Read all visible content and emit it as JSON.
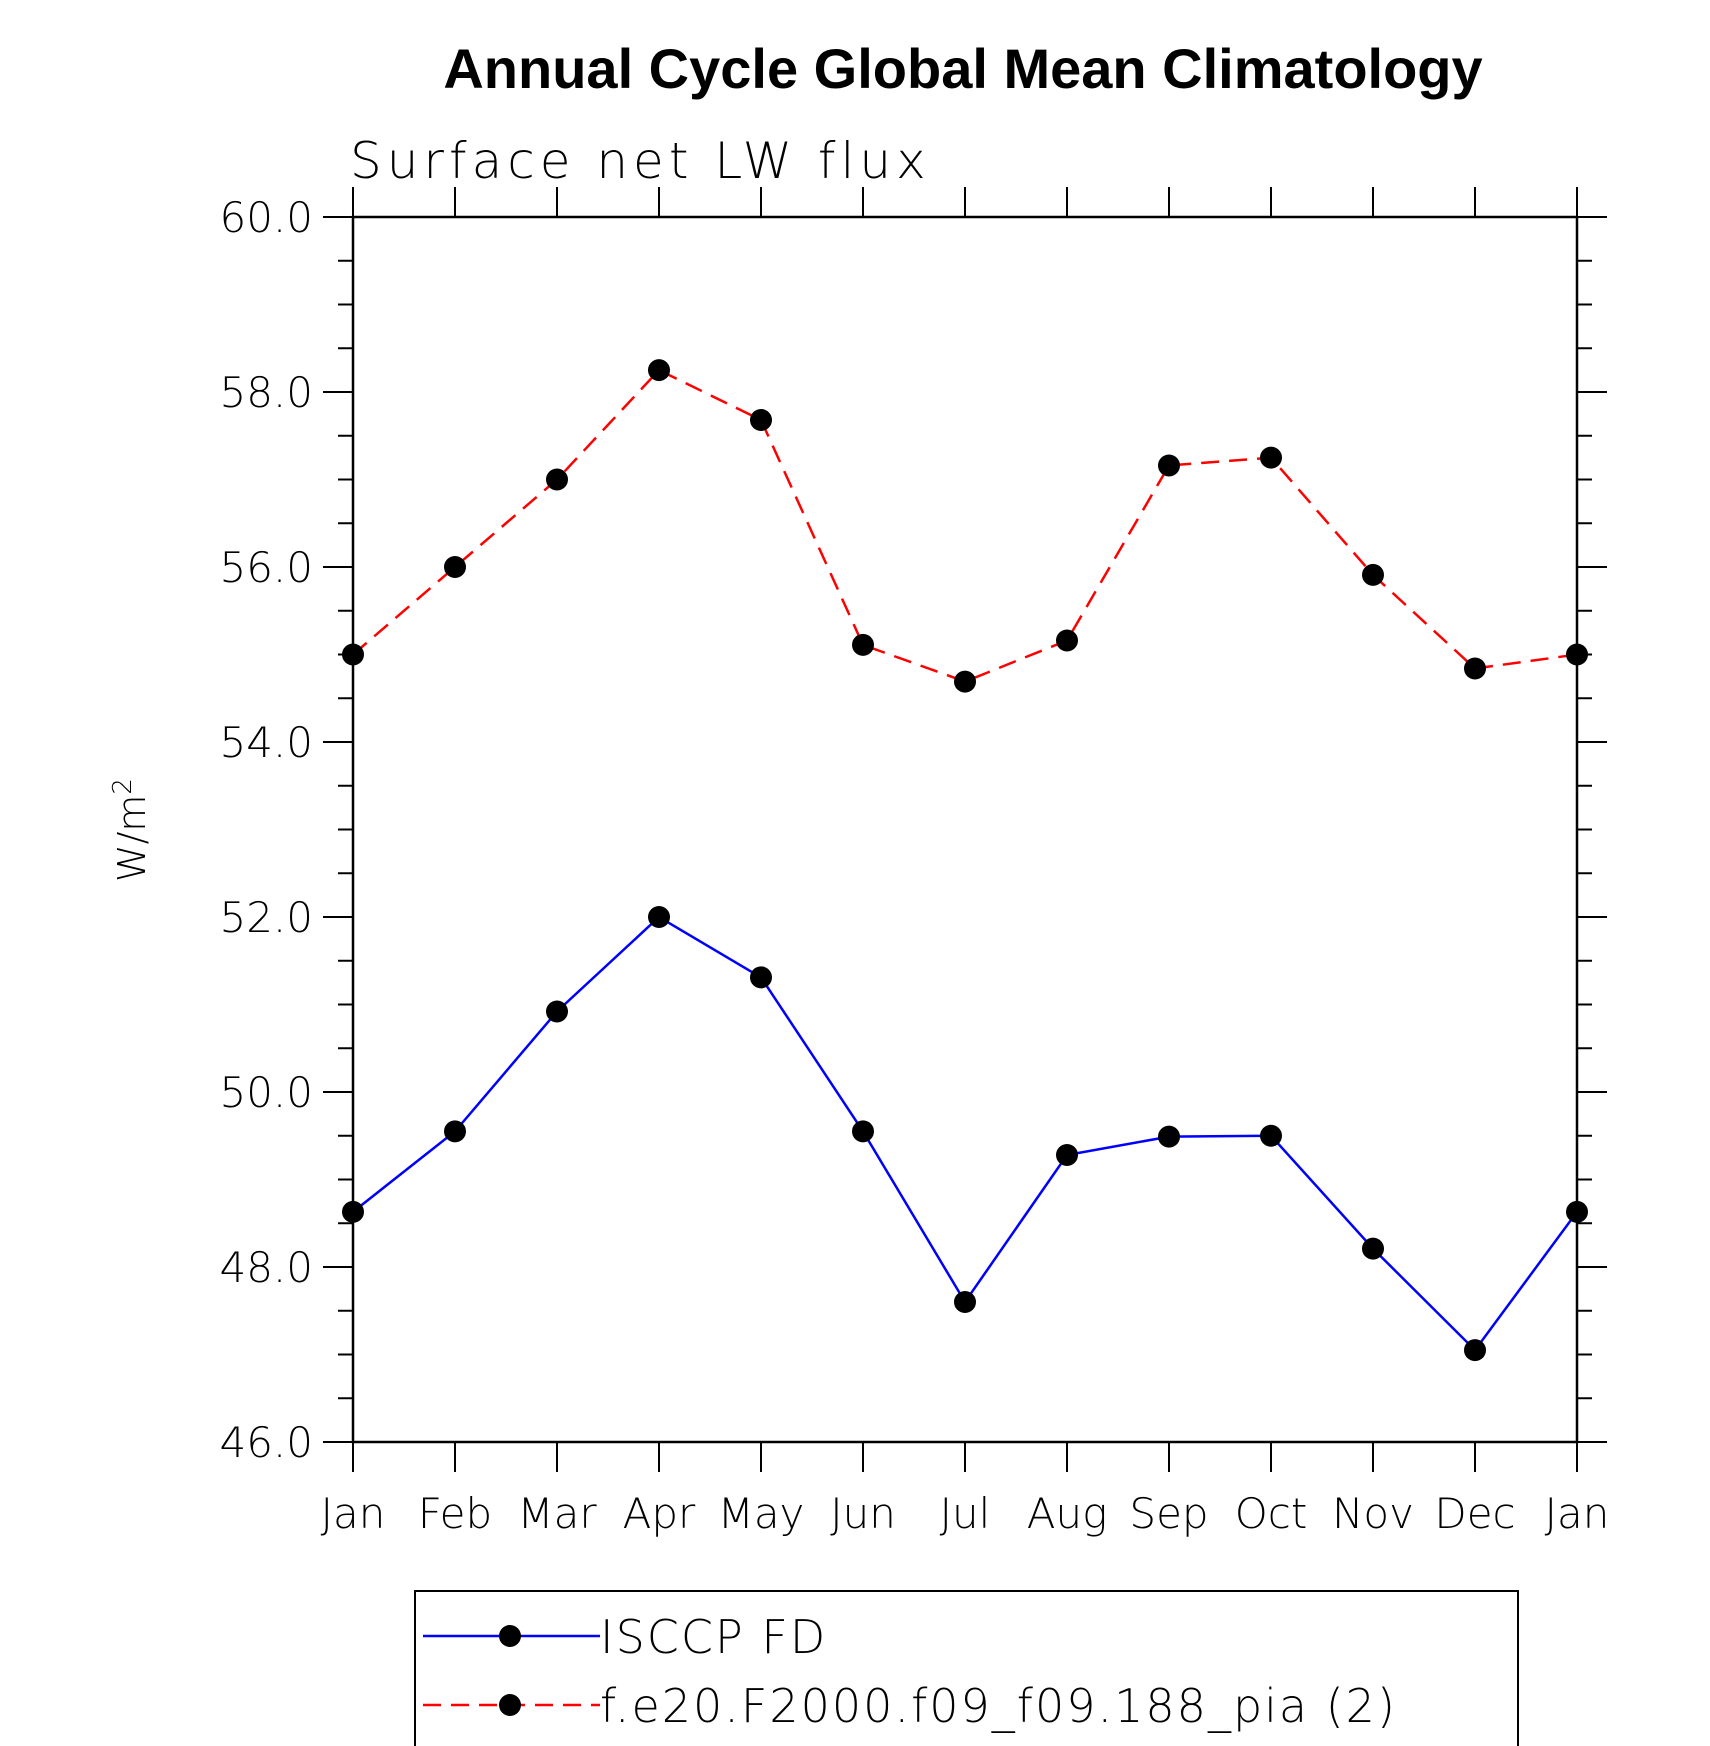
{
  "chart_data": {
    "type": "line",
    "title": "Annual Cycle Global Mean Climatology",
    "subtitle": "Surface net LW flux",
    "ylabel": "W/m",
    "ylabel_sup": "2",
    "categories": [
      "Jan",
      "Feb",
      "Mar",
      "Apr",
      "May",
      "Jun",
      "Jul",
      "Aug",
      "Sep",
      "Oct",
      "Nov",
      "Dec",
      "Jan"
    ],
    "ylim": [
      46.0,
      60.0
    ],
    "yticks": [
      "46.0",
      "48.0",
      "50.0",
      "52.0",
      "54.0",
      "56.0",
      "58.0",
      "60.0"
    ],
    "series": [
      {
        "name": "ISCCP FD",
        "color": "#0000ff",
        "dash": "solid",
        "values": [
          48.63,
          49.55,
          50.92,
          52.0,
          51.31,
          49.55,
          47.6,
          49.28,
          49.49,
          49.5,
          48.21,
          47.05,
          48.63
        ]
      },
      {
        "name": "f.e20.F2000.f09_f09.188_pia (2)",
        "color": "#ff0000",
        "dash": "dashed",
        "values": [
          55.0,
          56.0,
          57.0,
          58.25,
          57.68,
          55.11,
          54.69,
          55.16,
          57.16,
          57.25,
          55.91,
          54.84,
          55.0
        ]
      }
    ],
    "legend_position": "bottom"
  }
}
